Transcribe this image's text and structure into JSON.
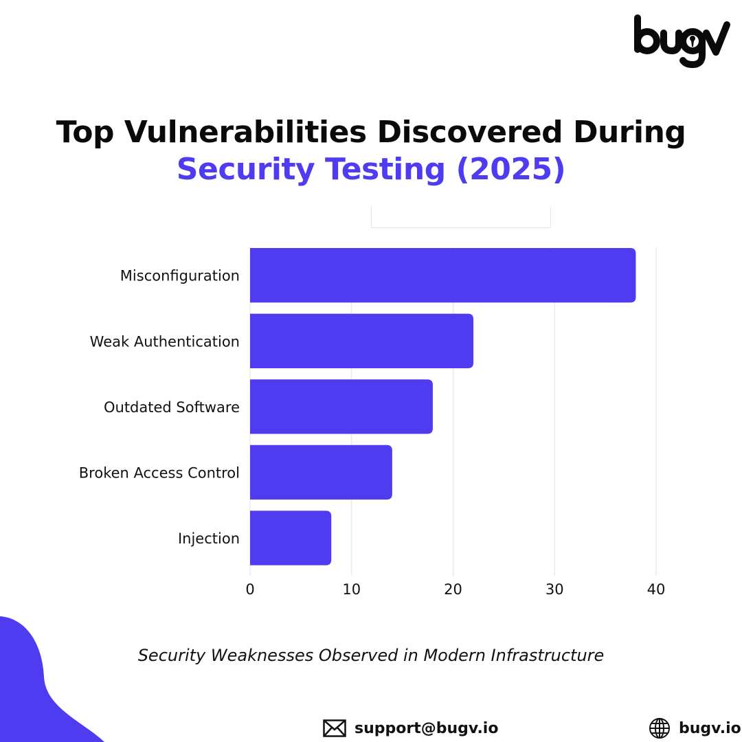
{
  "brand": {
    "logo_text": "bugv"
  },
  "title": {
    "line1": "Top Vulnerabilities Discovered During",
    "line2": "Security Testing (2025)"
  },
  "colors": {
    "accent": "#4f3bf0",
    "grid": "#e3e3e3",
    "text": "#111111"
  },
  "chart_data": {
    "type": "bar",
    "orientation": "horizontal",
    "categories": [
      "Misconfiguration",
      "Weak Authentication",
      "Outdated Software",
      "Broken Access Control",
      "Injection"
    ],
    "values": [
      38,
      22,
      18,
      14,
      8
    ],
    "xlim": [
      0,
      40
    ],
    "xticks": [
      0,
      10,
      20,
      30,
      40
    ],
    "grid": true,
    "color": "#4f3bf0"
  },
  "subtitle": "Security Weaknesses Observed in Modern Infrastructure",
  "footer": {
    "email": "support@bugv.io",
    "email_icon": "mail-icon",
    "website": "bugv.io",
    "website_icon": "globe-icon"
  }
}
